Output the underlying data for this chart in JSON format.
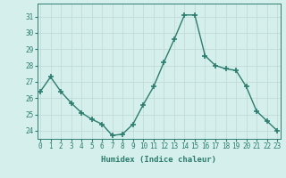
{
  "x": [
    0,
    1,
    2,
    3,
    4,
    5,
    6,
    7,
    8,
    9,
    10,
    11,
    12,
    13,
    14,
    15,
    16,
    17,
    18,
    19,
    20,
    21,
    22,
    23
  ],
  "y": [
    26.4,
    27.3,
    26.4,
    25.7,
    25.1,
    24.7,
    24.4,
    23.7,
    23.8,
    24.4,
    25.6,
    26.7,
    28.2,
    29.6,
    31.1,
    31.1,
    28.6,
    28.0,
    27.8,
    27.7,
    26.7,
    25.2,
    24.6,
    24.0
  ],
  "line_color": "#2d7d6e",
  "marker": "+",
  "marker_size": 4,
  "marker_lw": 1.2,
  "line_width": 1.0,
  "bg_color": "#d4efec",
  "grid_color": "#c0d8d4",
  "xlabel": "Humidex (Indice chaleur)",
  "ylim": [
    23.5,
    31.8
  ],
  "yticks": [
    24,
    25,
    26,
    27,
    28,
    29,
    30,
    31
  ],
  "xticks": [
    0,
    1,
    2,
    3,
    4,
    5,
    6,
    7,
    8,
    9,
    10,
    11,
    12,
    13,
    14,
    15,
    16,
    17,
    18,
    19,
    20,
    21,
    22,
    23
  ],
  "tick_label_fontsize": 5.5,
  "xlabel_fontsize": 6.5,
  "xlim": [
    -0.3,
    23.3
  ]
}
